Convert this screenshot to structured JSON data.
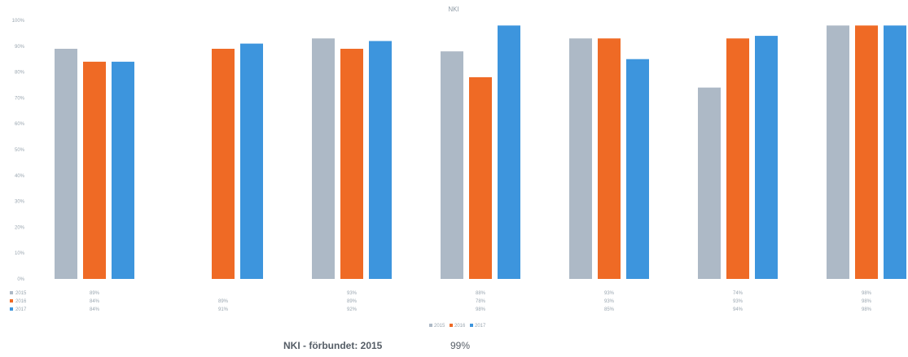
{
  "chart_data": {
    "type": "bar",
    "title": "NKI",
    "ylim": [
      0,
      100
    ],
    "ytick_step": 10,
    "grid": false,
    "legend_position": "bottom-center",
    "categories": [
      "",
      "",
      "",
      "",
      "",
      "",
      ""
    ],
    "series": [
      {
        "name": "2015",
        "color": "#adb9c6",
        "values": [
          89,
          null,
          93,
          88,
          93,
          74,
          98
        ]
      },
      {
        "name": "2016",
        "color": "#ef6a25",
        "values": [
          84,
          89,
          89,
          78,
          93,
          93,
          98
        ]
      },
      {
        "name": "2017",
        "color": "#3d95dd",
        "values": [
          84,
          91,
          92,
          98,
          85,
          94,
          98
        ]
      }
    ]
  },
  "footer": {
    "label": "NKI - förbundet: 2015",
    "value": "99%"
  }
}
